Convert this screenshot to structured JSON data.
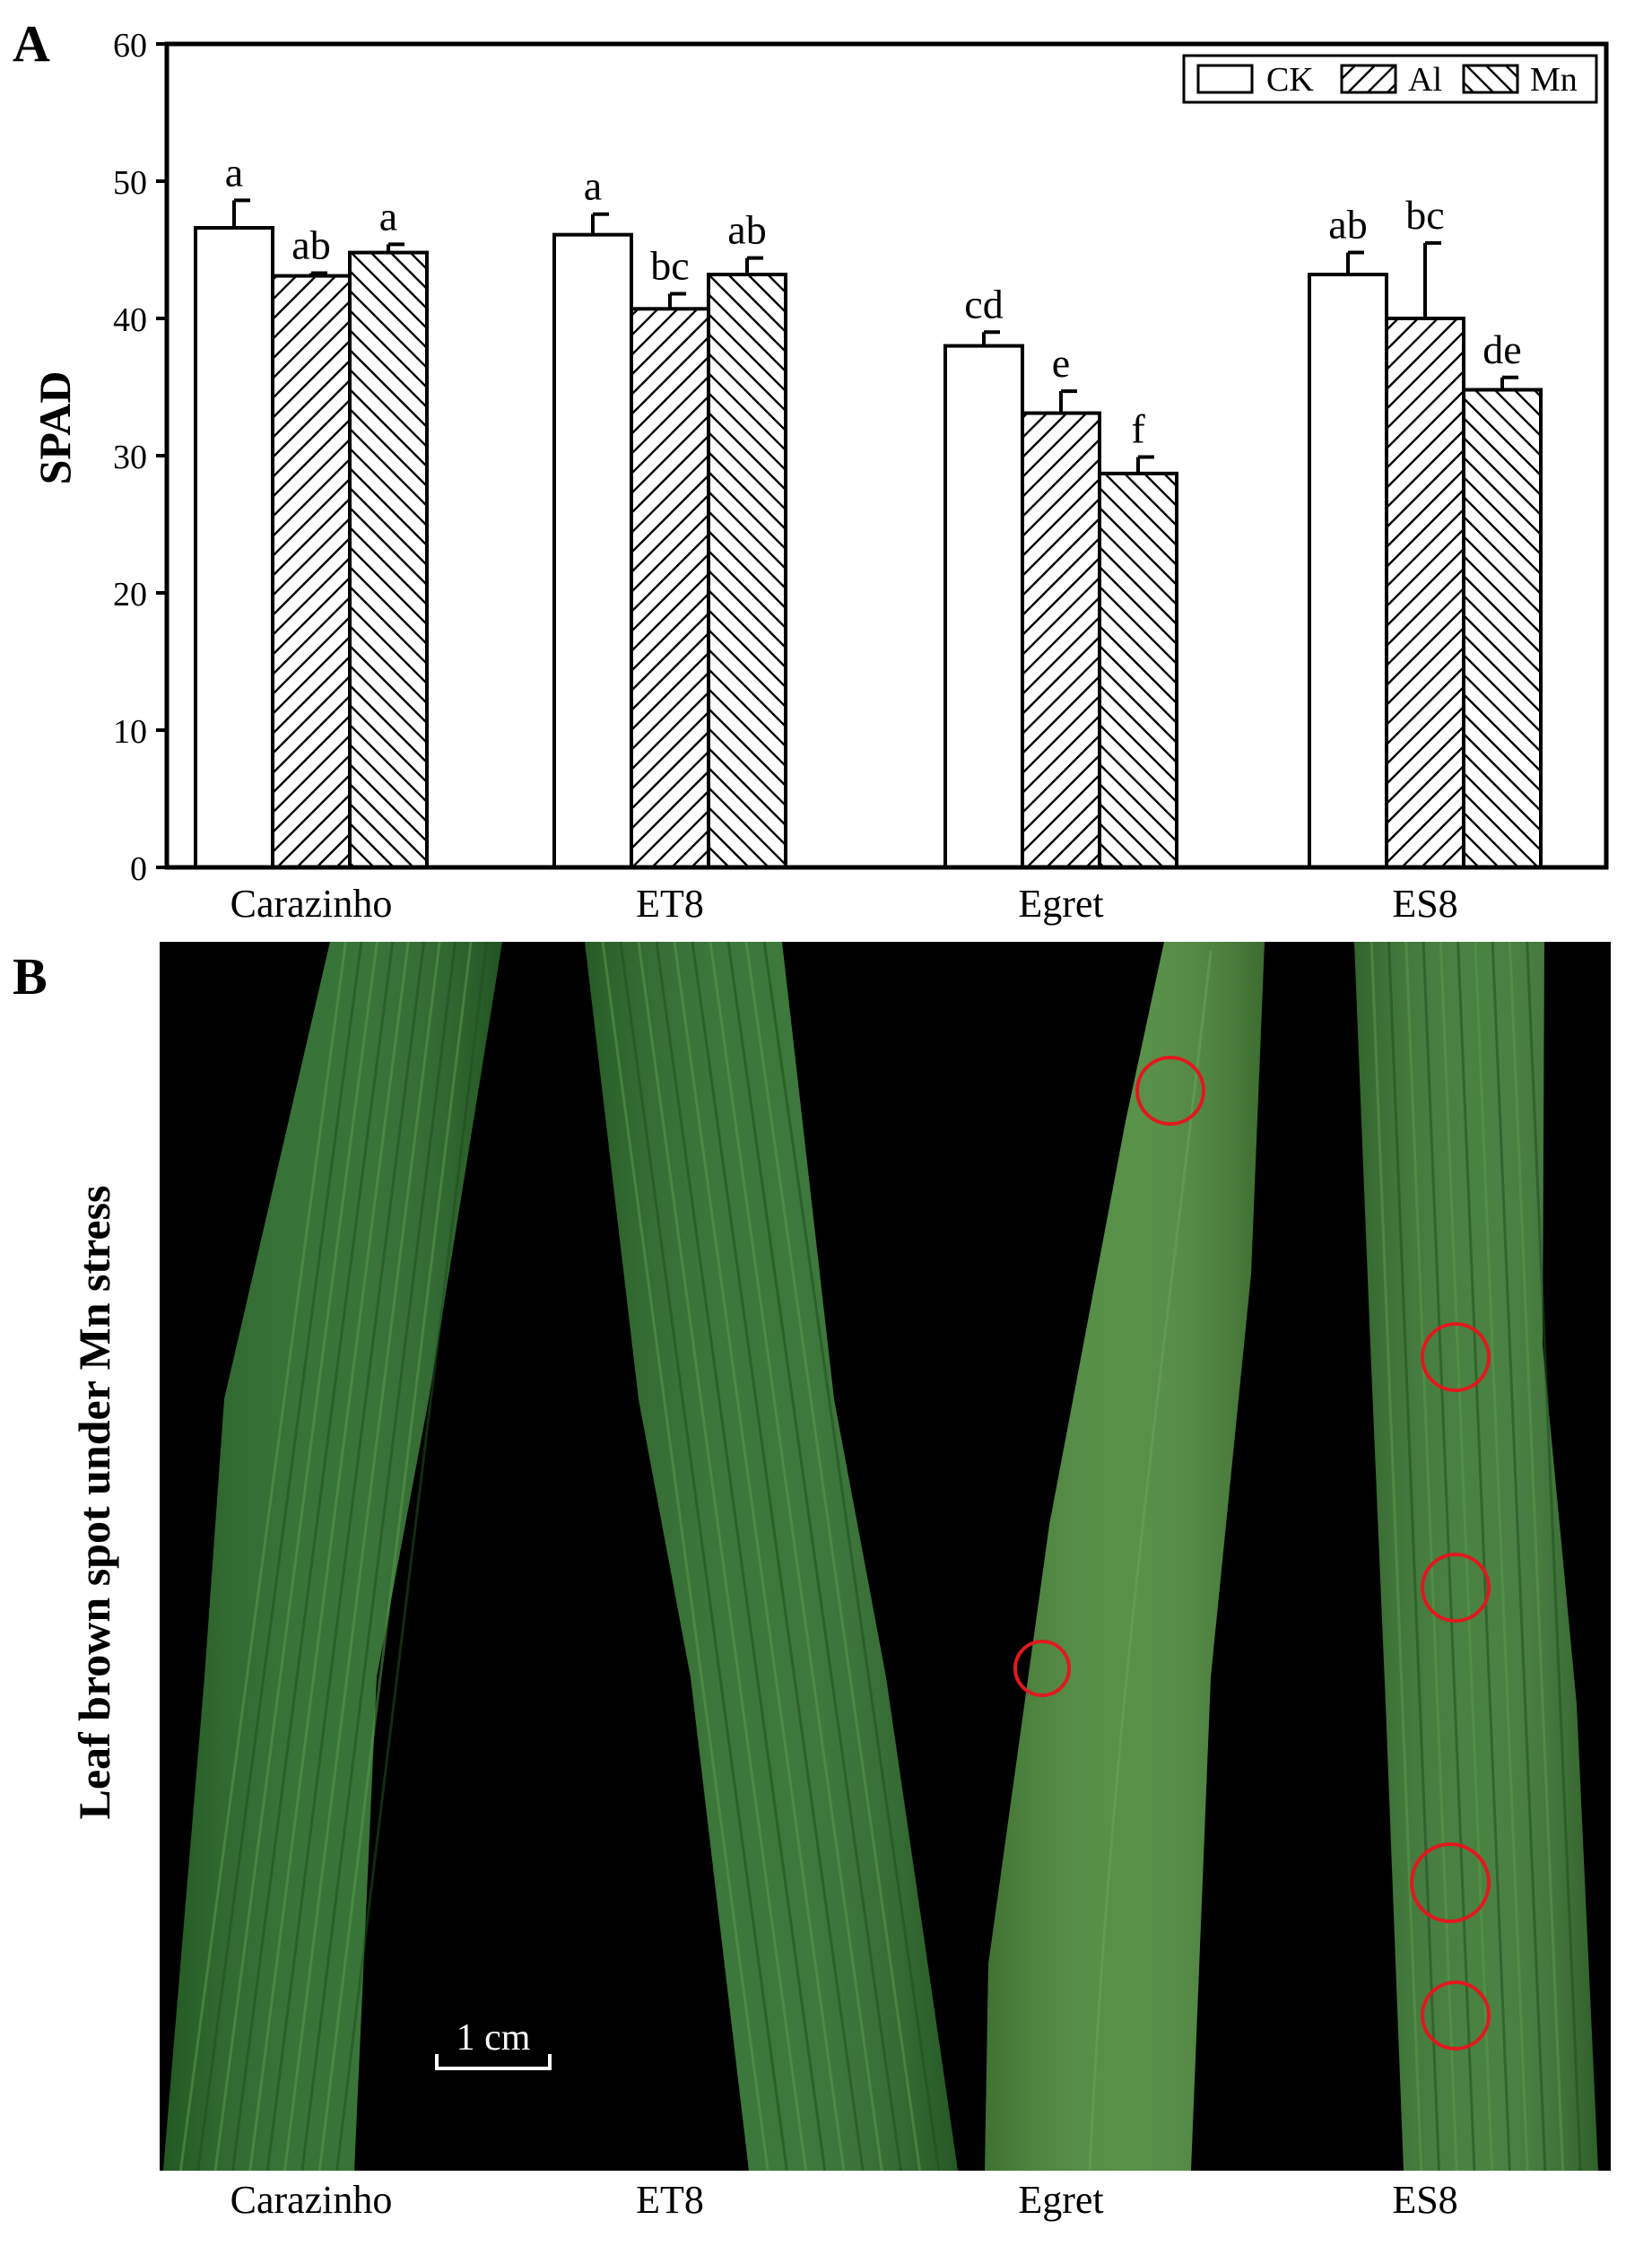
{
  "panel_a_label": "A",
  "panel_b_label": "B",
  "chart_data": {
    "type": "bar",
    "ylabel": "SPAD",
    "xlabel": "",
    "ylim": [
      0,
      60
    ],
    "yticks": [
      0,
      10,
      20,
      30,
      40,
      50,
      60
    ],
    "grid": false,
    "legend_position": "top-right",
    "categories": [
      "Carazinho",
      "ET8",
      "Egret",
      "ES8"
    ],
    "series": [
      {
        "name": "CK",
        "pattern": "none",
        "values": [
          46.6,
          46.1,
          38.0,
          43.2
        ],
        "errors": [
          2.0,
          1.5,
          1.0,
          1.6
        ],
        "labels": [
          "a",
          "a",
          "cd",
          "ab"
        ]
      },
      {
        "name": "Al",
        "pattern": "forward-hatch",
        "values": [
          43.1,
          40.7,
          33.1,
          40.0
        ],
        "errors": [
          0.2,
          1.1,
          1.6,
          5.5
        ],
        "labels": [
          "ab",
          "bc",
          "e",
          "bc"
        ]
      },
      {
        "name": "Mn",
        "pattern": "back-hatch",
        "values": [
          44.8,
          43.2,
          28.7,
          34.8
        ],
        "errors": [
          0.6,
          1.2,
          1.2,
          0.9
        ],
        "labels": [
          "a",
          "ab",
          "f",
          "de"
        ]
      }
    ]
  },
  "photo": {
    "ylabel": "Leaf brown spot under Mn stress",
    "scale_bar_label": "1 cm",
    "leaf_labels": [
      "Carazinho",
      "ET8",
      "Egret",
      "ES8"
    ],
    "spot_marker_color": "#e0191e",
    "background_color": "#000000",
    "leaf_colors": [
      "#2a6b2a",
      "#2f702e",
      "#4d8a3c",
      "#3d7a35"
    ]
  }
}
